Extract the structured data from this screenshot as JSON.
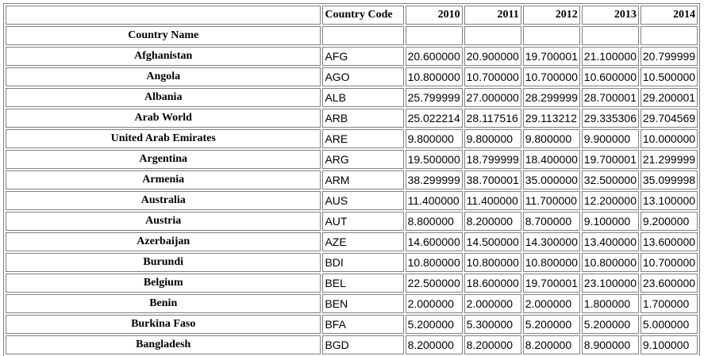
{
  "table": {
    "header": {
      "country_code": "Country Code",
      "years": [
        "2010",
        "2011",
        "2012",
        "2013",
        "2014"
      ]
    },
    "name_header": "Country Name",
    "rows": [
      {
        "name": "Afghanistan",
        "code": "AFG",
        "values": [
          "20.600000",
          "20.900000",
          "19.700001",
          "21.100000",
          "20.799999"
        ]
      },
      {
        "name": "Angola",
        "code": "AGO",
        "values": [
          "10.800000",
          "10.700000",
          "10.700000",
          "10.600000",
          "10.500000"
        ]
      },
      {
        "name": "Albania",
        "code": "ALB",
        "values": [
          "25.799999",
          "27.000000",
          "28.299999",
          "28.700001",
          "29.200001"
        ]
      },
      {
        "name": "Arab World",
        "code": "ARB",
        "values": [
          "25.022214",
          "28.117516",
          "29.113212",
          "29.335306",
          "29.704569"
        ]
      },
      {
        "name": "United Arab Emirates",
        "code": "ARE",
        "values": [
          "9.800000",
          "9.800000",
          "9.800000",
          "9.900000",
          "10.000000"
        ]
      },
      {
        "name": "Argentina",
        "code": "ARG",
        "values": [
          "19.500000",
          "18.799999",
          "18.400000",
          "19.700001",
          "21.299999"
        ]
      },
      {
        "name": "Armenia",
        "code": "ARM",
        "values": [
          "38.299999",
          "38.700001",
          "35.000000",
          "32.500000",
          "35.099998"
        ]
      },
      {
        "name": "Australia",
        "code": "AUS",
        "values": [
          "11.400000",
          "11.400000",
          "11.700000",
          "12.200000",
          "13.100000"
        ]
      },
      {
        "name": "Austria",
        "code": "AUT",
        "values": [
          "8.800000",
          "8.200000",
          "8.700000",
          "9.100000",
          "9.200000"
        ]
      },
      {
        "name": "Azerbaijan",
        "code": "AZE",
        "values": [
          "14.600000",
          "14.500000",
          "14.300000",
          "13.400000",
          "13.600000"
        ]
      },
      {
        "name": "Burundi",
        "code": "BDI",
        "values": [
          "10.800000",
          "10.800000",
          "10.800000",
          "10.800000",
          "10.700000"
        ]
      },
      {
        "name": "Belgium",
        "code": "BEL",
        "values": [
          "22.500000",
          "18.600000",
          "19.700001",
          "23.100000",
          "23.600000"
        ]
      },
      {
        "name": "Benin",
        "code": "BEN",
        "values": [
          "2.000000",
          "2.000000",
          "2.000000",
          "1.800000",
          "1.700000"
        ]
      },
      {
        "name": "Burkina Faso",
        "code": "BFA",
        "values": [
          "5.200000",
          "5.300000",
          "5.200000",
          "5.200000",
          "5.000000"
        ]
      },
      {
        "name": "Bangladesh",
        "code": "BGD",
        "values": [
          "8.200000",
          "8.200000",
          "8.200000",
          "8.900000",
          "9.100000"
        ]
      }
    ]
  }
}
